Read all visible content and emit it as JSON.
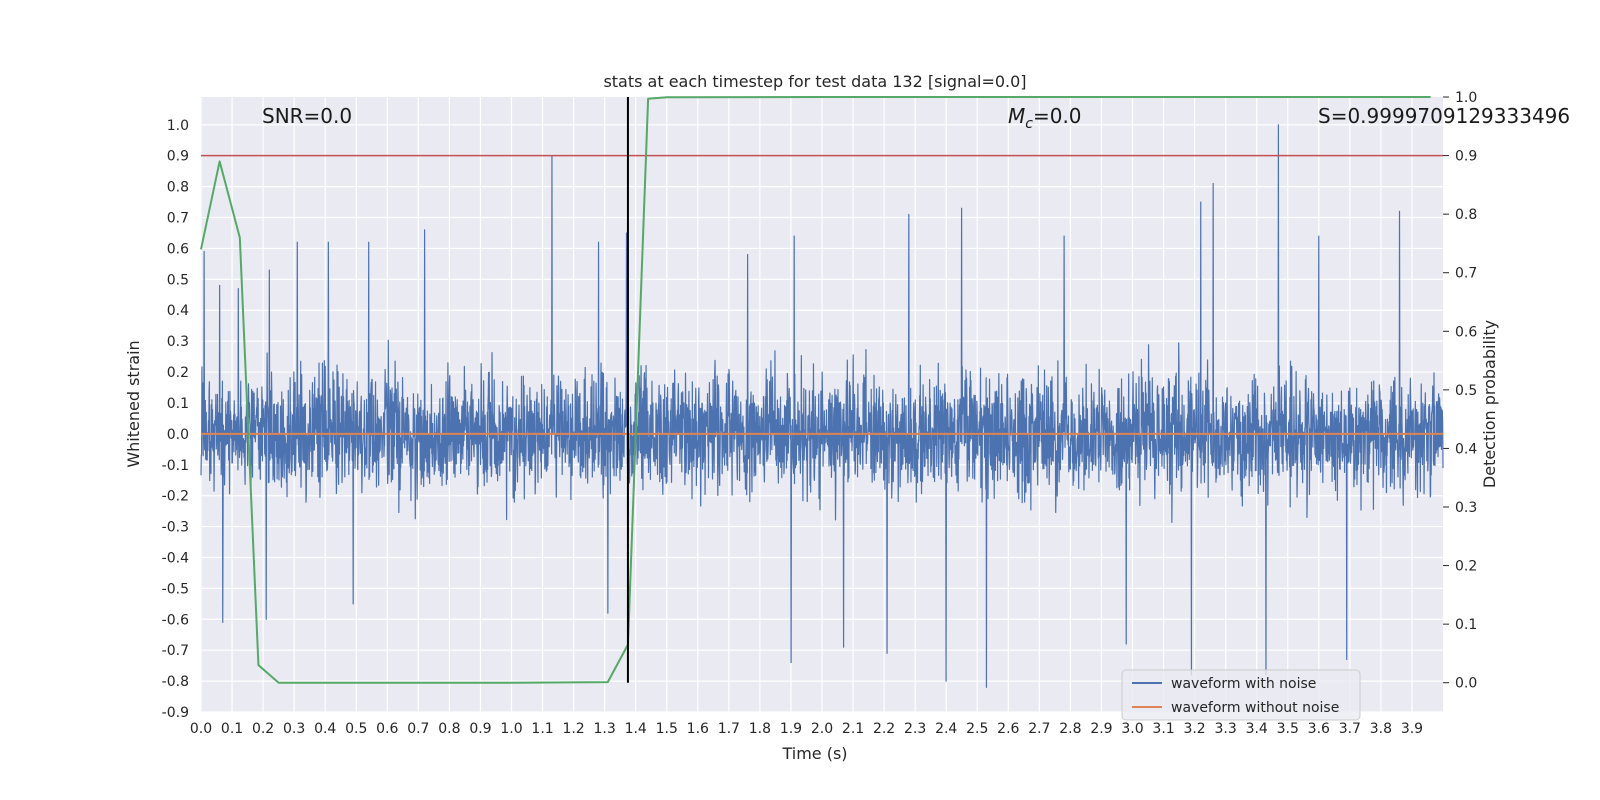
{
  "chart_data": {
    "type": "line",
    "title": "stats at each timestep for test data 132 [signal=0.0]",
    "xlabel": "Time (s)",
    "ylabel_left": "Whitened strain",
    "ylabel_right": "Detection probability",
    "xlim": [
      0.0,
      4.0
    ],
    "ylim_left": [
      -0.9,
      1.09
    ],
    "ylim_right": [
      -0.05,
      1.0
    ],
    "x_ticks": [
      "0.0",
      "0.1",
      "0.2",
      "0.3",
      "0.4",
      "0.5",
      "0.6",
      "0.7",
      "0.8",
      "0.9",
      "1.0",
      "1.1",
      "1.2",
      "1.3",
      "1.4",
      "1.5",
      "1.6",
      "1.7",
      "1.8",
      "1.9",
      "2.0",
      "2.1",
      "2.2",
      "2.3",
      "2.4",
      "2.5",
      "2.6",
      "2.7",
      "2.8",
      "2.9",
      "3.0",
      "3.1",
      "3.2",
      "3.3",
      "3.4",
      "3.5",
      "3.6",
      "3.7",
      "3.8",
      "3.9"
    ],
    "y_ticks_left": [
      "-0.9",
      "-0.8",
      "-0.7",
      "-0.6",
      "-0.5",
      "-0.4",
      "-0.3",
      "-0.2",
      "-0.1",
      "0.0",
      "0.1",
      "0.2",
      "0.3",
      "0.4",
      "0.5",
      "0.6",
      "0.7",
      "0.8",
      "0.9",
      "1.0"
    ],
    "y_ticks_right": [
      "0.0",
      "0.1",
      "0.2",
      "0.3",
      "0.4",
      "0.5",
      "0.6",
      "0.7",
      "0.8",
      "0.9",
      "1.0"
    ],
    "grid": true,
    "legend_position": "lower-right",
    "annotations": {
      "snr": "SNR=0.0",
      "mc_symbol": "M",
      "mc_sub": "c",
      "mc_value": "=0.0",
      "s": "S=0.9999709129333496"
    },
    "vertical_line_x": 1.375,
    "threshold_right": 0.9,
    "series": [
      {
        "name": "waveform with noise",
        "color": "#4c72b0",
        "axis": "left",
        "peaks": [
          {
            "x": 0.01,
            "y": 0.59
          },
          {
            "x": 0.06,
            "y": 0.48
          },
          {
            "x": 0.12,
            "y": 0.47
          },
          {
            "x": 0.22,
            "y": 0.53
          },
          {
            "x": 0.31,
            "y": 0.62
          },
          {
            "x": 0.41,
            "y": 0.62
          },
          {
            "x": 0.54,
            "y": 0.62
          },
          {
            "x": 0.72,
            "y": 0.66
          },
          {
            "x": 1.13,
            "y": 0.9
          },
          {
            "x": 1.28,
            "y": 0.62
          },
          {
            "x": 1.37,
            "y": 0.65
          },
          {
            "x": 1.76,
            "y": 0.58
          },
          {
            "x": 1.91,
            "y": 0.64
          },
          {
            "x": 2.28,
            "y": 0.71
          },
          {
            "x": 2.45,
            "y": 0.73
          },
          {
            "x": 2.78,
            "y": 0.64
          },
          {
            "x": 3.22,
            "y": 0.75
          },
          {
            "x": 3.26,
            "y": 0.81
          },
          {
            "x": 3.47,
            "y": 1.0
          },
          {
            "x": 3.6,
            "y": 0.64
          },
          {
            "x": 3.86,
            "y": 0.72
          }
        ],
        "troughs": [
          {
            "x": 0.07,
            "y": -0.61
          },
          {
            "x": 0.21,
            "y": -0.6
          },
          {
            "x": 0.49,
            "y": -0.55
          },
          {
            "x": 1.31,
            "y": -0.58
          },
          {
            "x": 1.9,
            "y": -0.74
          },
          {
            "x": 2.07,
            "y": -0.69
          },
          {
            "x": 2.21,
            "y": -0.71
          },
          {
            "x": 2.4,
            "y": -0.8
          },
          {
            "x": 2.53,
            "y": -0.82
          },
          {
            "x": 2.98,
            "y": -0.68
          },
          {
            "x": 3.19,
            "y": -0.78
          },
          {
            "x": 3.43,
            "y": -0.78
          },
          {
            "x": 3.69,
            "y": -0.73
          }
        ]
      },
      {
        "name": "waveform without noise",
        "color": "#dd8452",
        "axis": "left",
        "x": [
          0.0,
          4.0
        ],
        "y": [
          0.0,
          0.0
        ]
      },
      {
        "name": "",
        "color": "#55a868",
        "axis": "right",
        "x": [
          0.0,
          0.06,
          0.125,
          0.185,
          0.25,
          0.5,
          1.0,
          1.31,
          1.375,
          1.44,
          1.5,
          2.0,
          3.0,
          3.96
        ],
        "y": [
          0.74,
          0.89,
          0.76,
          0.03,
          0.0,
          0.0,
          0.0,
          0.001,
          0.065,
          0.997,
          0.9995,
          0.9999,
          0.9999,
          0.9999
        ]
      }
    ]
  }
}
